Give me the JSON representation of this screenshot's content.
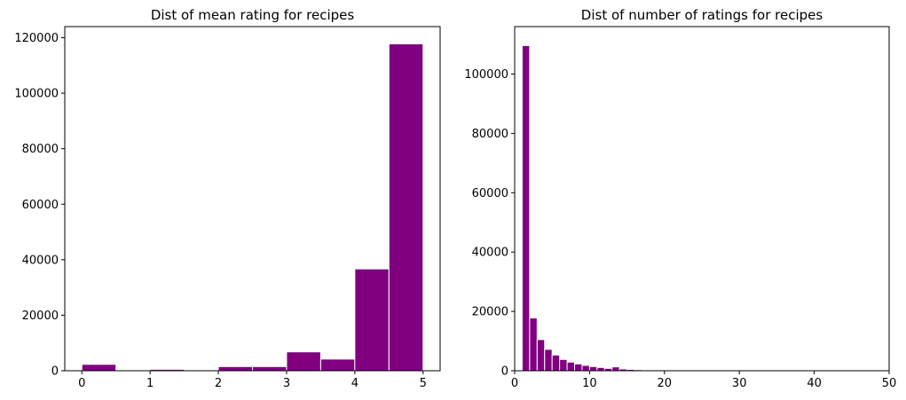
{
  "chart_data": [
    {
      "type": "histogram",
      "title": "Dist of mean rating for recipes",
      "bins": [
        0,
        0.5,
        1,
        1.5,
        2,
        2.5,
        3,
        3.5,
        4,
        4.5,
        5
      ],
      "counts": [
        2300,
        0,
        500,
        0,
        1500,
        1500,
        6800,
        4200,
        36700,
        117800
      ],
      "color": "#800080",
      "xlim": [
        -0.25,
        5.25
      ],
      "xticks": [
        0,
        1,
        2,
        3,
        4,
        5
      ],
      "ylim": [
        0,
        124000
      ],
      "yticks": [
        0,
        20000,
        40000,
        60000,
        80000,
        100000,
        120000
      ]
    },
    {
      "type": "histogram",
      "title": "Dist of number of ratings for recipes",
      "bins": [
        1,
        2,
        3,
        4,
        5,
        6,
        7,
        8,
        9,
        10,
        11,
        12,
        13,
        14,
        15,
        16,
        17,
        18,
        19,
        20,
        21
      ],
      "counts": [
        109600,
        17800,
        10500,
        7200,
        5300,
        3800,
        2900,
        2300,
        1800,
        1400,
        1100,
        800,
        1300,
        600,
        450,
        350,
        250,
        200,
        150,
        120
      ],
      "color": "#800080",
      "xlim": [
        0,
        50
      ],
      "xticks": [
        0,
        10,
        20,
        30,
        40,
        50
      ],
      "ylim": [
        0,
        116000
      ],
      "yticks": [
        0,
        20000,
        40000,
        60000,
        80000,
        100000
      ]
    }
  ]
}
